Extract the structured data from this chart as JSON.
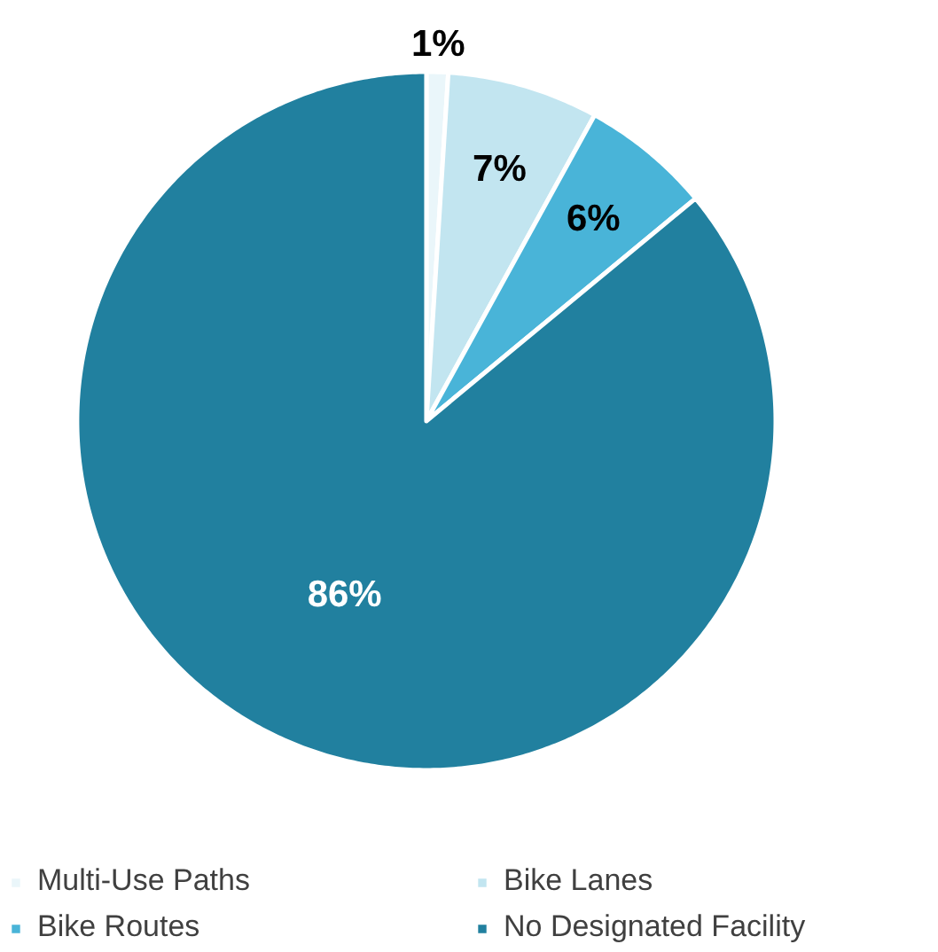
{
  "chart_data": {
    "type": "pie",
    "categories": [
      "Multi-Use Paths",
      "Bike Lanes",
      "Bike Routes",
      "No Designated Facility"
    ],
    "values": [
      1,
      7,
      6,
      86
    ],
    "colors": [
      "#eaf6fa",
      "#c2e5f0",
      "#49b4d8",
      "#21809f"
    ],
    "value_labels": [
      "1%",
      "7%",
      "6%",
      "86%"
    ],
    "legend": "bottom"
  }
}
